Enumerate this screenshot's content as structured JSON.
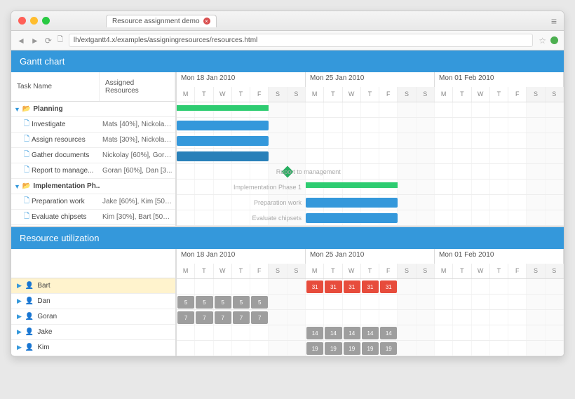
{
  "browser": {
    "tab_title": "Resource assignment demo",
    "url": "lh/extgantt4.x/examples/assigningresources/resources.html"
  },
  "gantt": {
    "title": "Gantt chart",
    "columns": {
      "c1": "Task Name",
      "c2": "Assigned Resources"
    },
    "weeks": [
      "Mon 18 Jan 2010",
      "Mon 25 Jan 2010",
      "Mon 01 Feb 2010"
    ],
    "day_labels": [
      "M",
      "T",
      "W",
      "T",
      "F",
      "S",
      "S"
    ],
    "tasks": [
      {
        "name": "Planning",
        "type": "group",
        "assigned": "",
        "bar": {
          "kind": "summary",
          "start": 0,
          "span": 5,
          "color": "#2ecc71"
        }
      },
      {
        "name": "Investigate",
        "type": "leaf",
        "assigned": "Mats [40%], Nickolay ...",
        "bar": {
          "kind": "task",
          "start": 0,
          "span": 5,
          "color": "#3498db"
        }
      },
      {
        "name": "Assign resources",
        "type": "leaf",
        "assigned": "Mats [30%], Nickolay ...",
        "bar": {
          "kind": "task",
          "start": 0,
          "span": 5,
          "color": "#3498db"
        }
      },
      {
        "name": "Gather documents",
        "type": "leaf",
        "assigned": "Nickolay [60%], Gora...",
        "bar": {
          "kind": "task",
          "start": 0,
          "span": 5,
          "color": "#2980b9"
        }
      },
      {
        "name": "Report to manage...",
        "type": "leaf",
        "assigned": "Goran [60%], Dan [3...",
        "bar": {
          "kind": "milestone",
          "start": 6,
          "label": "Report to management"
        }
      },
      {
        "name": "Implementation Ph...",
        "type": "group",
        "assigned": "",
        "bar": {
          "kind": "summary",
          "start": 7,
          "span": 5,
          "color": "#2ecc71",
          "label": "Implementation Phase 1"
        }
      },
      {
        "name": "Preparation work",
        "type": "leaf",
        "assigned": "Jake [60%], Kim [50%...",
        "bar": {
          "kind": "task",
          "start": 7,
          "span": 5,
          "color": "#3498db",
          "label": "Preparation work"
        }
      },
      {
        "name": "Evaluate chipsets",
        "type": "leaf",
        "assigned": "Kim [30%], Bart [50%...",
        "bar": {
          "kind": "task",
          "start": 7,
          "span": 5,
          "color": "#3498db",
          "label": "Evaluate chipsets"
        }
      }
    ]
  },
  "util": {
    "title": "Resource utilization",
    "weeks": [
      "Mon 18 Jan 2010",
      "Mon 25 Jan 2010",
      "Mon 01 Feb 2010"
    ],
    "resources": [
      {
        "name": "Bart",
        "cells": [
          {
            "start": 7,
            "span": 5,
            "val": "31",
            "color": "#e74c3c"
          }
        ]
      },
      {
        "name": "Dan",
        "cells": [
          {
            "start": 0,
            "span": 5,
            "val": "5",
            "color": "#9e9e9e"
          }
        ]
      },
      {
        "name": "Goran",
        "cells": [
          {
            "start": 0,
            "span": 5,
            "val": "7",
            "color": "#9e9e9e"
          }
        ]
      },
      {
        "name": "Jake",
        "cells": [
          {
            "start": 7,
            "span": 5,
            "val": "14",
            "color": "#9e9e9e"
          }
        ]
      },
      {
        "name": "Kim",
        "cells": [
          {
            "start": 7,
            "span": 5,
            "val": "19",
            "color": "#9e9e9e"
          }
        ]
      }
    ]
  },
  "colors": {
    "header_bg": "#3498db",
    "summary": "#2ecc71",
    "task": "#3498db",
    "task_alt": "#2980b9",
    "over": "#e74c3c",
    "under": "#9e9e9e",
    "selected_row": "#fff3cd"
  }
}
